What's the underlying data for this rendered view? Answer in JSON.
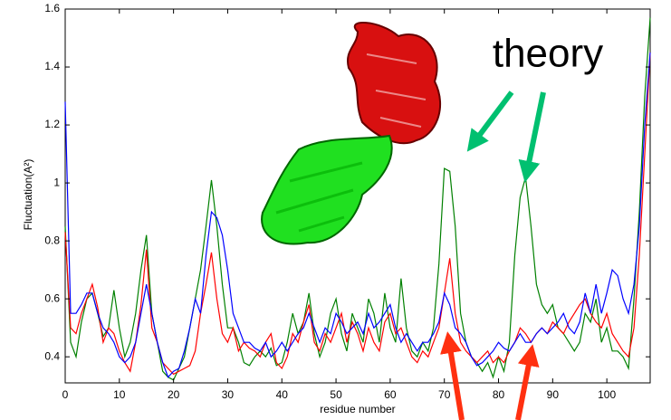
{
  "chart_data": {
    "type": "line",
    "y_label": "Fluctuation(A²)",
    "x_label": "residue number",
    "annotation": "theory",
    "x": [
      0,
      1,
      2,
      3,
      4,
      5,
      6,
      7,
      8,
      9,
      10,
      11,
      12,
      13,
      14,
      15,
      16,
      17,
      18,
      19,
      20,
      21,
      22,
      23,
      24,
      25,
      26,
      27,
      28,
      29,
      30,
      31,
      32,
      33,
      34,
      35,
      36,
      37,
      38,
      39,
      40,
      41,
      42,
      43,
      44,
      45,
      46,
      47,
      48,
      49,
      50,
      51,
      52,
      53,
      54,
      55,
      56,
      57,
      58,
      59,
      60,
      61,
      62,
      63,
      64,
      65,
      66,
      67,
      68,
      69,
      70,
      71,
      72,
      73,
      74,
      75,
      76,
      77,
      78,
      79,
      80,
      81,
      82,
      83,
      84,
      85,
      86,
      87,
      88,
      89,
      90,
      91,
      92,
      93,
      94,
      95,
      96,
      97,
      98,
      99,
      100,
      101,
      102,
      103,
      104,
      105,
      106,
      107,
      108
    ],
    "series": [
      {
        "color": "#008000",
        "values": [
          0.85,
          0.45,
          0.4,
          0.52,
          0.6,
          0.62,
          0.55,
          0.47,
          0.5,
          0.63,
          0.5,
          0.4,
          0.45,
          0.55,
          0.7,
          0.82,
          0.55,
          0.45,
          0.35,
          0.33,
          0.32,
          0.36,
          0.4,
          0.5,
          0.6,
          0.7,
          0.85,
          1.01,
          0.85,
          0.65,
          0.5,
          0.5,
          0.45,
          0.38,
          0.37,
          0.4,
          0.42,
          0.4,
          0.43,
          0.37,
          0.38,
          0.45,
          0.55,
          0.48,
          0.52,
          0.62,
          0.48,
          0.4,
          0.45,
          0.55,
          0.6,
          0.48,
          0.42,
          0.55,
          0.5,
          0.45,
          0.6,
          0.55,
          0.45,
          0.62,
          0.5,
          0.45,
          0.67,
          0.5,
          0.42,
          0.4,
          0.45,
          0.42,
          0.5,
          0.72,
          1.05,
          1.04,
          0.85,
          0.55,
          0.45,
          0.4,
          0.38,
          0.35,
          0.38,
          0.33,
          0.4,
          0.35,
          0.45,
          0.75,
          0.95,
          1.02,
          0.85,
          0.65,
          0.58,
          0.55,
          0.58,
          0.5,
          0.48,
          0.45,
          0.42,
          0.45,
          0.55,
          0.52,
          0.6,
          0.45,
          0.5,
          0.42,
          0.42,
          0.4,
          0.36,
          0.6,
          0.9,
          1.3,
          1.57
        ]
      },
      {
        "color": "#ff0000",
        "values": [
          0.83,
          0.5,
          0.48,
          0.55,
          0.6,
          0.65,
          0.57,
          0.45,
          0.5,
          0.48,
          0.42,
          0.38,
          0.35,
          0.45,
          0.58,
          0.77,
          0.5,
          0.45,
          0.38,
          0.36,
          0.34,
          0.35,
          0.36,
          0.37,
          0.42,
          0.55,
          0.65,
          0.76,
          0.6,
          0.48,
          0.45,
          0.5,
          0.42,
          0.45,
          0.43,
          0.42,
          0.4,
          0.45,
          0.48,
          0.38,
          0.36,
          0.4,
          0.48,
          0.45,
          0.52,
          0.58,
          0.45,
          0.42,
          0.48,
          0.45,
          0.5,
          0.55,
          0.45,
          0.52,
          0.48,
          0.42,
          0.5,
          0.45,
          0.42,
          0.52,
          0.55,
          0.48,
          0.5,
          0.45,
          0.4,
          0.38,
          0.42,
          0.4,
          0.45,
          0.5,
          0.62,
          0.74,
          0.55,
          0.45,
          0.42,
          0.4,
          0.38,
          0.4,
          0.42,
          0.38,
          0.4,
          0.38,
          0.42,
          0.45,
          0.5,
          0.48,
          0.45,
          0.48,
          0.5,
          0.48,
          0.52,
          0.5,
          0.48,
          0.52,
          0.55,
          0.58,
          0.6,
          0.55,
          0.52,
          0.5,
          0.55,
          0.48,
          0.45,
          0.42,
          0.4,
          0.5,
          0.75,
          1.1,
          1.45
        ]
      },
      {
        "color": "#0000ff",
        "values": [
          1.28,
          0.55,
          0.55,
          0.58,
          0.62,
          0.62,
          0.55,
          0.5,
          0.48,
          0.45,
          0.4,
          0.38,
          0.4,
          0.45,
          0.55,
          0.65,
          0.55,
          0.45,
          0.38,
          0.33,
          0.35,
          0.36,
          0.42,
          0.5,
          0.6,
          0.55,
          0.75,
          0.9,
          0.88,
          0.82,
          0.7,
          0.55,
          0.5,
          0.45,
          0.45,
          0.43,
          0.42,
          0.45,
          0.4,
          0.42,
          0.45,
          0.42,
          0.45,
          0.48,
          0.5,
          0.55,
          0.5,
          0.45,
          0.5,
          0.48,
          0.55,
          0.52,
          0.48,
          0.5,
          0.52,
          0.48,
          0.55,
          0.5,
          0.52,
          0.55,
          0.58,
          0.5,
          0.45,
          0.48,
          0.45,
          0.42,
          0.45,
          0.45,
          0.48,
          0.52,
          0.62,
          0.58,
          0.5,
          0.48,
          0.45,
          0.4,
          0.37,
          0.38,
          0.4,
          0.42,
          0.45,
          0.43,
          0.42,
          0.45,
          0.48,
          0.45,
          0.45,
          0.48,
          0.5,
          0.48,
          0.5,
          0.52,
          0.55,
          0.5,
          0.48,
          0.52,
          0.62,
          0.55,
          0.65,
          0.55,
          0.62,
          0.7,
          0.68,
          0.6,
          0.55,
          0.65,
          0.85,
          1.2,
          1.45
        ]
      }
    ],
    "xlim": [
      0,
      108
    ],
    "ylim": [
      0.31,
      1.6
    ],
    "xticks": [
      0,
      10,
      20,
      30,
      40,
      50,
      60,
      70,
      80,
      90,
      100
    ],
    "yticks": [
      0.4,
      0.6,
      0.8,
      1,
      1.2,
      1.4,
      1.6
    ]
  }
}
